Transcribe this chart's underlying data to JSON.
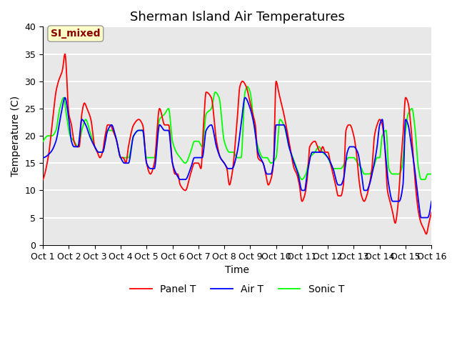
{
  "title": "Sherman Island Air Temperatures",
  "xlabel": "Time",
  "ylabel": "Temperature (C)",
  "ylim": [
    0,
    40
  ],
  "xlim": [
    0,
    15
  ],
  "xtick_labels": [
    "Oct 1",
    "Oct 2",
    "Oct 3",
    "Oct 4",
    "Oct 5",
    "Oct 6",
    "Oct 7",
    "Oct 8",
    "Oct 9",
    "Oct 10",
    "Oct 11",
    "Oct 12",
    "Oct 13",
    "Oct 14",
    "Oct 15",
    "Oct 16"
  ],
  "ytick_vals": [
    0,
    5,
    10,
    15,
    20,
    25,
    30,
    35,
    40
  ],
  "line_colors": [
    "red",
    "blue",
    "lime"
  ],
  "line_labels": [
    "Panel T",
    "Air T",
    "Sonic T"
  ],
  "legend_label": "SI_mixed",
  "legend_label_color": "#8b0000",
  "legend_box_facecolor": "#ffffc8",
  "legend_box_edgecolor": "#999999",
  "bg_color": "#e8e8e8",
  "title_fontsize": 13,
  "label_fontsize": 10,
  "tick_fontsize": 9,
  "linewidth": 1.3,
  "grid_color": "white",
  "grid_linewidth": 1.5,
  "panel_t_keypoints": [
    [
      0.0,
      12
    ],
    [
      0.2,
      16
    ],
    [
      0.4,
      24
    ],
    [
      0.5,
      28
    ],
    [
      0.6,
      30
    ],
    [
      0.75,
      32
    ],
    [
      0.85,
      35
    ],
    [
      1.0,
      24
    ],
    [
      1.1,
      22
    ],
    [
      1.2,
      19
    ],
    [
      1.3,
      18
    ],
    [
      1.4,
      18
    ],
    [
      1.5,
      24
    ],
    [
      1.6,
      26
    ],
    [
      1.7,
      25
    ],
    [
      1.85,
      23
    ],
    [
      2.0,
      18
    ],
    [
      2.1,
      17
    ],
    [
      2.2,
      16
    ],
    [
      2.3,
      17
    ],
    [
      2.4,
      20
    ],
    [
      2.5,
      22
    ],
    [
      2.6,
      22
    ],
    [
      2.7,
      21
    ],
    [
      2.85,
      19
    ],
    [
      3.0,
      16
    ],
    [
      3.1,
      16
    ],
    [
      3.2,
      15
    ],
    [
      3.3,
      18
    ],
    [
      3.5,
      22
    ],
    [
      3.7,
      23
    ],
    [
      3.85,
      22
    ],
    [
      4.0,
      15
    ],
    [
      4.15,
      13
    ],
    [
      4.3,
      15
    ],
    [
      4.5,
      25
    ],
    [
      4.7,
      22
    ],
    [
      4.85,
      22
    ],
    [
      5.0,
      15
    ],
    [
      5.1,
      13
    ],
    [
      5.2,
      13
    ],
    [
      5.3,
      11
    ],
    [
      5.5,
      10
    ],
    [
      5.7,
      13
    ],
    [
      5.85,
      15
    ],
    [
      6.0,
      15
    ],
    [
      6.1,
      14
    ],
    [
      6.2,
      22
    ],
    [
      6.3,
      28
    ],
    [
      6.5,
      27
    ],
    [
      6.7,
      19
    ],
    [
      6.85,
      16
    ],
    [
      7.0,
      15
    ],
    [
      7.1,
      14
    ],
    [
      7.2,
      11
    ],
    [
      7.3,
      13
    ],
    [
      7.5,
      23
    ],
    [
      7.6,
      29
    ],
    [
      7.7,
      30
    ],
    [
      7.85,
      29
    ],
    [
      8.0,
      26
    ],
    [
      8.1,
      24
    ],
    [
      8.2,
      22
    ],
    [
      8.3,
      16
    ],
    [
      8.5,
      15
    ],
    [
      8.6,
      13
    ],
    [
      8.7,
      11
    ],
    [
      8.8,
      12
    ],
    [
      8.9,
      15
    ],
    [
      9.0,
      30
    ],
    [
      9.1,
      28
    ],
    [
      9.3,
      24
    ],
    [
      9.5,
      19
    ],
    [
      9.7,
      14
    ],
    [
      9.8,
      13
    ],
    [
      9.9,
      11
    ],
    [
      10.0,
      8
    ],
    [
      10.1,
      9
    ],
    [
      10.2,
      12
    ],
    [
      10.3,
      18
    ],
    [
      10.5,
      19
    ],
    [
      10.6,
      18
    ],
    [
      10.7,
      17
    ],
    [
      10.8,
      18
    ],
    [
      10.9,
      17
    ],
    [
      11.0,
      17
    ],
    [
      11.1,
      15
    ],
    [
      11.2,
      13
    ],
    [
      11.3,
      11
    ],
    [
      11.4,
      9
    ],
    [
      11.5,
      9
    ],
    [
      11.6,
      11
    ],
    [
      11.7,
      21
    ],
    [
      11.8,
      22
    ],
    [
      11.85,
      22
    ],
    [
      12.0,
      20
    ],
    [
      12.1,
      17
    ],
    [
      12.2,
      12
    ],
    [
      12.3,
      9
    ],
    [
      12.4,
      8
    ],
    [
      12.5,
      9
    ],
    [
      12.6,
      11
    ],
    [
      12.7,
      14
    ],
    [
      12.8,
      20
    ],
    [
      12.9,
      22
    ],
    [
      13.0,
      23
    ],
    [
      13.1,
      22
    ],
    [
      13.2,
      18
    ],
    [
      13.3,
      10
    ],
    [
      13.4,
      8
    ],
    [
      13.5,
      6
    ],
    [
      13.6,
      4
    ],
    [
      13.7,
      7
    ],
    [
      13.8,
      14
    ],
    [
      13.9,
      20
    ],
    [
      14.0,
      27
    ],
    [
      14.1,
      26
    ],
    [
      14.2,
      22
    ],
    [
      14.3,
      16
    ],
    [
      14.4,
      10
    ],
    [
      14.5,
      6
    ],
    [
      14.6,
      4
    ],
    [
      14.7,
      3
    ],
    [
      14.8,
      2
    ],
    [
      14.9,
      4
    ],
    [
      15.0,
      6
    ]
  ],
  "air_t_keypoints": [
    [
      0.0,
      16
    ],
    [
      0.3,
      17
    ],
    [
      0.5,
      19
    ],
    [
      0.7,
      24
    ],
    [
      0.85,
      27
    ],
    [
      1.0,
      23
    ],
    [
      1.1,
      19
    ],
    [
      1.2,
      18
    ],
    [
      1.35,
      18
    ],
    [
      1.5,
      23
    ],
    [
      1.65,
      22
    ],
    [
      1.8,
      20
    ],
    [
      2.0,
      18
    ],
    [
      2.15,
      17
    ],
    [
      2.3,
      17
    ],
    [
      2.5,
      21
    ],
    [
      2.65,
      22
    ],
    [
      2.8,
      20
    ],
    [
      3.0,
      16
    ],
    [
      3.15,
      15
    ],
    [
      3.3,
      15
    ],
    [
      3.5,
      20
    ],
    [
      3.7,
      21
    ],
    [
      3.85,
      21
    ],
    [
      4.0,
      15
    ],
    [
      4.15,
      14
    ],
    [
      4.3,
      14
    ],
    [
      4.5,
      22
    ],
    [
      4.7,
      21
    ],
    [
      4.85,
      21
    ],
    [
      5.0,
      15
    ],
    [
      5.15,
      13
    ],
    [
      5.3,
      12
    ],
    [
      5.5,
      12
    ],
    [
      5.7,
      14
    ],
    [
      5.85,
      16
    ],
    [
      6.0,
      16
    ],
    [
      6.15,
      16
    ],
    [
      6.3,
      21
    ],
    [
      6.5,
      22
    ],
    [
      6.7,
      18
    ],
    [
      6.85,
      16
    ],
    [
      7.0,
      15
    ],
    [
      7.15,
      14
    ],
    [
      7.3,
      14
    ],
    [
      7.5,
      17
    ],
    [
      7.65,
      22
    ],
    [
      7.8,
      27
    ],
    [
      8.0,
      25
    ],
    [
      8.15,
      22
    ],
    [
      8.3,
      17
    ],
    [
      8.5,
      15
    ],
    [
      8.65,
      13
    ],
    [
      8.8,
      13
    ],
    [
      8.9,
      15
    ],
    [
      9.0,
      22
    ],
    [
      9.15,
      22
    ],
    [
      9.3,
      22
    ],
    [
      9.5,
      18
    ],
    [
      9.7,
      15
    ],
    [
      9.85,
      13
    ],
    [
      10.0,
      10
    ],
    [
      10.1,
      10
    ],
    [
      10.2,
      13
    ],
    [
      10.4,
      17
    ],
    [
      10.6,
      17
    ],
    [
      10.8,
      17
    ],
    [
      11.0,
      16
    ],
    [
      11.2,
      14
    ],
    [
      11.4,
      11
    ],
    [
      11.5,
      11
    ],
    [
      11.6,
      12
    ],
    [
      11.75,
      17
    ],
    [
      11.85,
      18
    ],
    [
      12.0,
      18
    ],
    [
      12.15,
      17
    ],
    [
      12.3,
      13
    ],
    [
      12.4,
      10
    ],
    [
      12.5,
      10
    ],
    [
      12.6,
      11
    ],
    [
      12.75,
      14
    ],
    [
      12.9,
      18
    ],
    [
      13.0,
      22
    ],
    [
      13.1,
      23
    ],
    [
      13.2,
      18
    ],
    [
      13.35,
      11
    ],
    [
      13.5,
      8
    ],
    [
      13.6,
      8
    ],
    [
      13.75,
      8
    ],
    [
      13.9,
      11
    ],
    [
      14.0,
      23
    ],
    [
      14.1,
      22
    ],
    [
      14.2,
      19
    ],
    [
      14.35,
      14
    ],
    [
      14.5,
      8
    ],
    [
      14.6,
      5
    ],
    [
      14.75,
      5
    ],
    [
      14.85,
      5
    ],
    [
      15.0,
      8
    ]
  ],
  "sonic_t_keypoints": [
    [
      0.0,
      19
    ],
    [
      0.2,
      20
    ],
    [
      0.35,
      20
    ],
    [
      0.5,
      21
    ],
    [
      0.65,
      25
    ],
    [
      0.8,
      27
    ],
    [
      0.9,
      24
    ],
    [
      1.05,
      20
    ],
    [
      1.2,
      19
    ],
    [
      1.35,
      18
    ],
    [
      1.5,
      21
    ],
    [
      1.65,
      23
    ],
    [
      1.8,
      21
    ],
    [
      2.0,
      18
    ],
    [
      2.15,
      17
    ],
    [
      2.3,
      17
    ],
    [
      2.5,
      21
    ],
    [
      2.65,
      21
    ],
    [
      2.8,
      20
    ],
    [
      3.0,
      16
    ],
    [
      3.15,
      16
    ],
    [
      3.3,
      16
    ],
    [
      3.5,
      20
    ],
    [
      3.7,
      21
    ],
    [
      3.85,
      21
    ],
    [
      4.0,
      16
    ],
    [
      4.15,
      16
    ],
    [
      4.3,
      16
    ],
    [
      4.5,
      23
    ],
    [
      4.7,
      24
    ],
    [
      4.85,
      25
    ],
    [
      5.0,
      19
    ],
    [
      5.15,
      17
    ],
    [
      5.3,
      16
    ],
    [
      5.5,
      15
    ],
    [
      5.7,
      17
    ],
    [
      5.85,
      19
    ],
    [
      6.0,
      19
    ],
    [
      6.15,
      18
    ],
    [
      6.3,
      24
    ],
    [
      6.5,
      25
    ],
    [
      6.65,
      28
    ],
    [
      6.8,
      27
    ],
    [
      7.0,
      19
    ],
    [
      7.2,
      17
    ],
    [
      7.35,
      17
    ],
    [
      7.5,
      16
    ],
    [
      7.65,
      16
    ],
    [
      7.8,
      28
    ],
    [
      7.9,
      29
    ],
    [
      8.0,
      28
    ],
    [
      8.15,
      22
    ],
    [
      8.3,
      18
    ],
    [
      8.5,
      16
    ],
    [
      8.65,
      16
    ],
    [
      8.8,
      15
    ],
    [
      9.0,
      16
    ],
    [
      9.15,
      23
    ],
    [
      9.3,
      22
    ],
    [
      9.5,
      18
    ],
    [
      9.65,
      16
    ],
    [
      9.8,
      14
    ],
    [
      10.0,
      12
    ],
    [
      10.15,
      13
    ],
    [
      10.3,
      16
    ],
    [
      10.5,
      17
    ],
    [
      10.65,
      18
    ],
    [
      10.8,
      17
    ],
    [
      11.0,
      16
    ],
    [
      11.2,
      14
    ],
    [
      11.35,
      14
    ],
    [
      11.5,
      14
    ],
    [
      11.65,
      15
    ],
    [
      11.8,
      16
    ],
    [
      12.0,
      16
    ],
    [
      12.15,
      15
    ],
    [
      12.3,
      14
    ],
    [
      12.4,
      13
    ],
    [
      12.5,
      13
    ],
    [
      12.6,
      13
    ],
    [
      12.75,
      14
    ],
    [
      12.9,
      16
    ],
    [
      13.0,
      16
    ],
    [
      13.1,
      20
    ],
    [
      13.25,
      21
    ],
    [
      13.35,
      14
    ],
    [
      13.5,
      13
    ],
    [
      13.6,
      13
    ],
    [
      13.75,
      13
    ],
    [
      13.85,
      14
    ],
    [
      14.0,
      21
    ],
    [
      14.1,
      24
    ],
    [
      14.25,
      25
    ],
    [
      14.35,
      22
    ],
    [
      14.5,
      14
    ],
    [
      14.6,
      12
    ],
    [
      14.75,
      12
    ],
    [
      14.85,
      13
    ],
    [
      15.0,
      13
    ]
  ]
}
